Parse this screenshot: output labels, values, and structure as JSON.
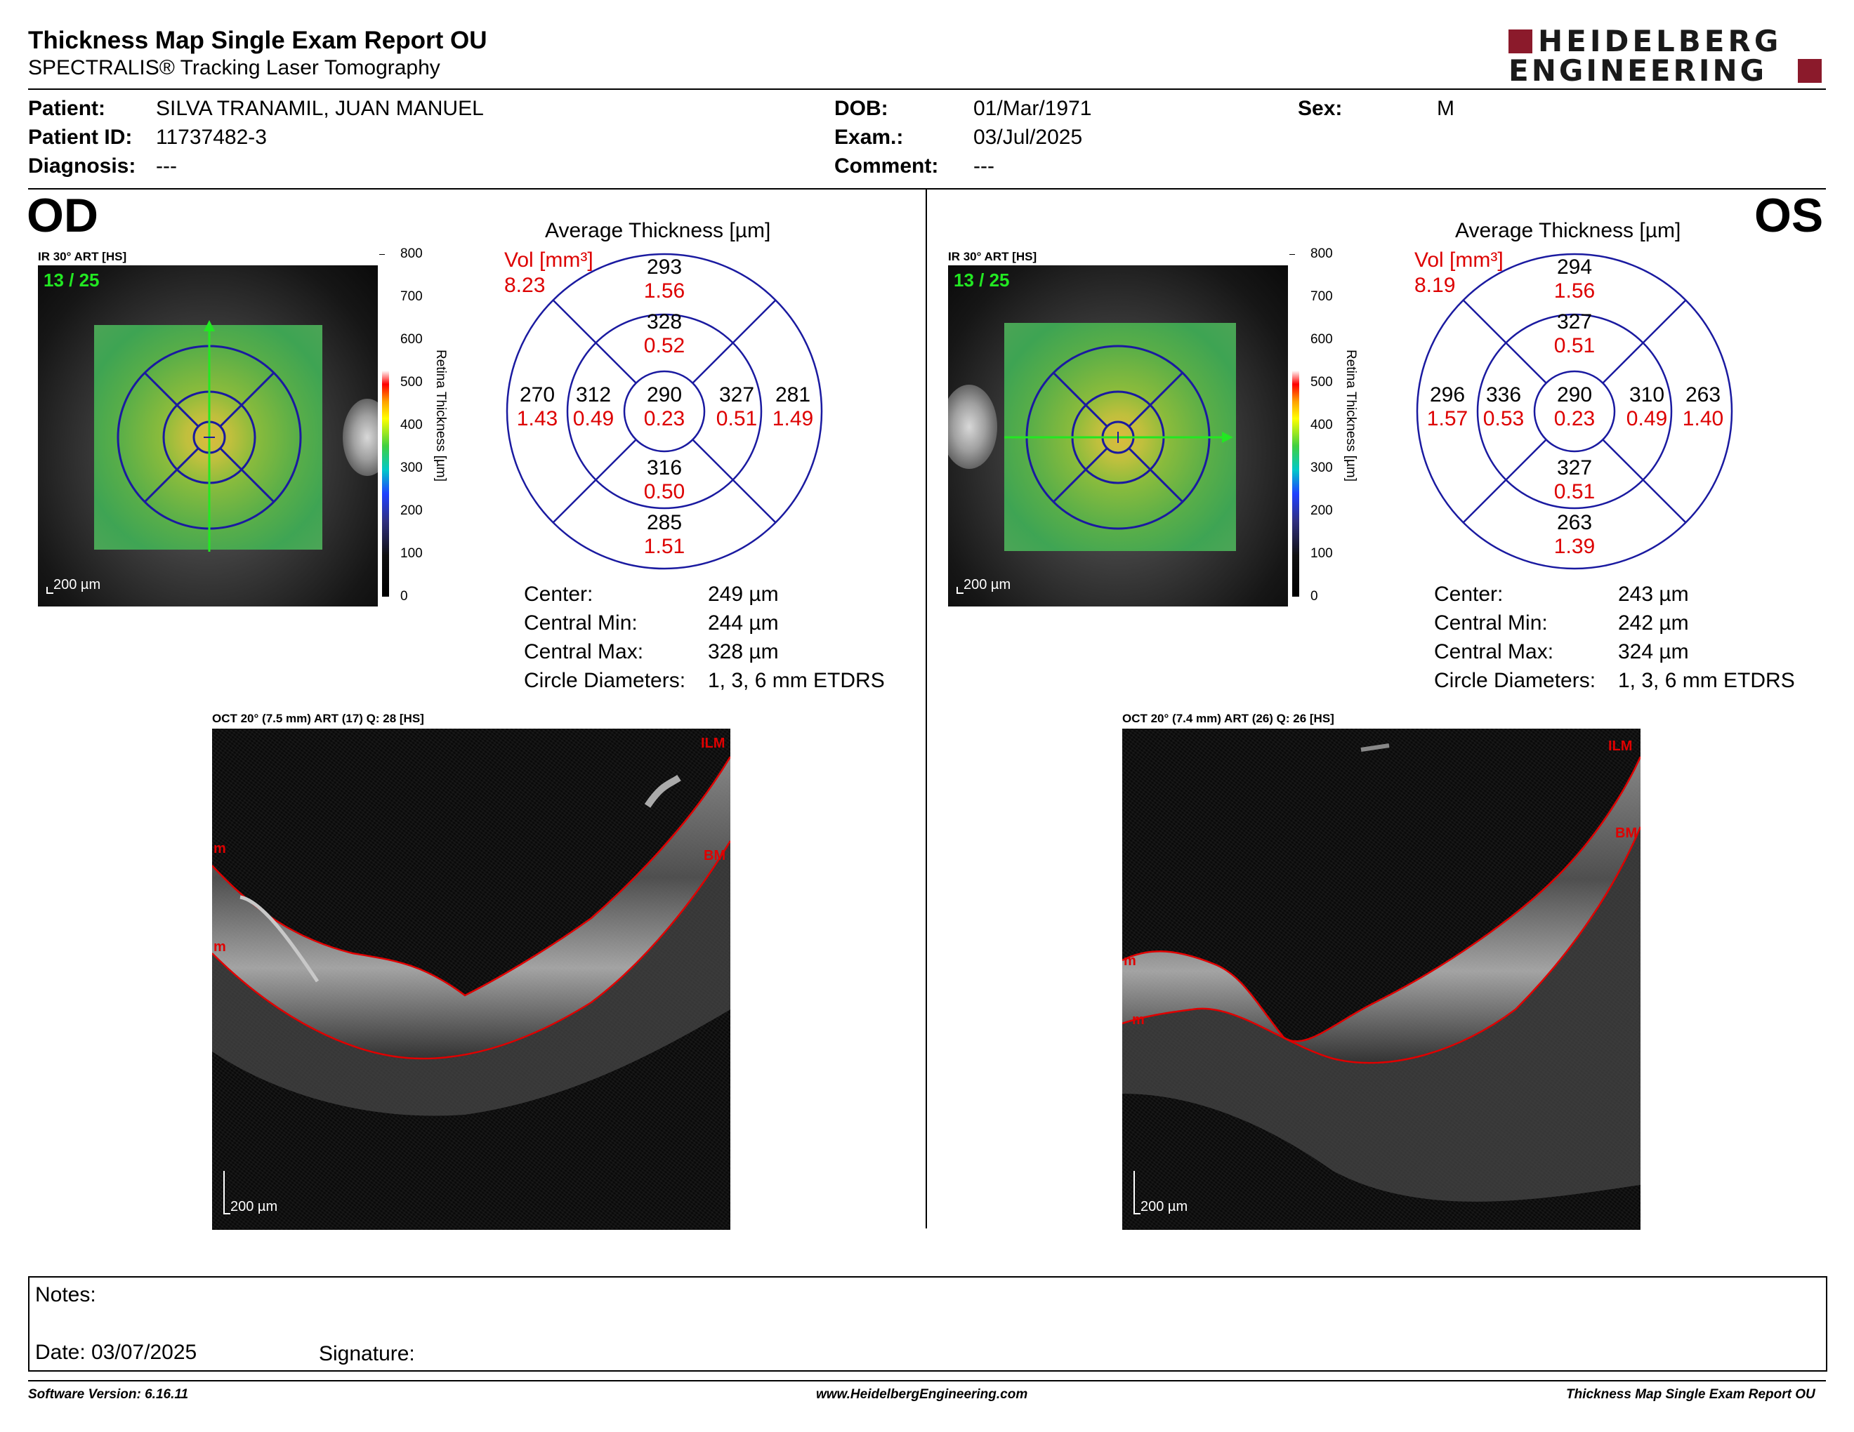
{
  "header": {
    "title": "Thickness Map Single Exam Report OU",
    "subtitle": "SPECTRALIS® Tracking Laser Tomography",
    "logo_line1": "HEIDELBERG",
    "logo_line2": "ENGINEERING",
    "logo_color": "#8b1a2b"
  },
  "patient": {
    "patient_label": "Patient:",
    "patient_value": "SILVA TRANAMIL, JUAN MANUEL",
    "id_label": "Patient ID:",
    "id_value": "11737482-3",
    "diagnosis_label": "Diagnosis:",
    "diagnosis_value": "---",
    "dob_label": "DOB:",
    "dob_value": "01/Mar/1971",
    "exam_label": "Exam.:",
    "exam_value": "03/Jul/2025",
    "comment_label": "Comment:",
    "comment_value": "---",
    "sex_label": "Sex:",
    "sex_value": "M"
  },
  "colorbar": {
    "ticks": [
      "800",
      "700",
      "600",
      "500",
      "400",
      "300",
      "200",
      "100",
      "0"
    ],
    "title": "Retina  Thickness [µm]"
  },
  "eyes": {
    "od": {
      "tag": "OD",
      "ir_caption": "IR 30° ART [HS]",
      "sequence": "13 / 25",
      "scale": "200 µm",
      "avg_title": "Average Thickness [µm]",
      "vol_label": "Vol [mm³]",
      "vol_value": "8.23",
      "etdrs": {
        "sup_outer": [
          "293",
          "1.56"
        ],
        "sup_inner": [
          "328",
          "0.52"
        ],
        "temp_outer": [
          "270",
          "1.43"
        ],
        "temp_inner": [
          "312",
          "0.49"
        ],
        "center": [
          "290",
          "0.23"
        ],
        "nasal_inner": [
          "327",
          "0.51"
        ],
        "nasal_outer": [
          "281",
          "1.49"
        ],
        "inf_inner": [
          "316",
          "0.50"
        ],
        "inf_outer": [
          "285",
          "1.51"
        ]
      },
      "stats": {
        "center_label": "Center:",
        "center_value": "249 µm",
        "min_label": "Central Min:",
        "min_value": "244 µm",
        "max_label": "Central Max:",
        "max_value": "328 µm",
        "diam_label": "Circle Diameters:",
        "diam_value": "1, 3, 6 mm ETDRS"
      },
      "oct_caption": "OCT 20° (7.5 mm) ART (17) Q: 28 [HS]",
      "oct_scale": "200 µm",
      "ilm": "ILM",
      "bm": "BM",
      "left_m1": "m",
      "left_m2": "m"
    },
    "os": {
      "tag": "OS",
      "ir_caption": "IR 30° ART [HS]",
      "sequence": "13 / 25",
      "scale": "200 µm",
      "avg_title": "Average Thickness [µm]",
      "vol_label": "Vol [mm³]",
      "vol_value": "8.19",
      "etdrs": {
        "sup_outer": [
          "294",
          "1.56"
        ],
        "sup_inner": [
          "327",
          "0.51"
        ],
        "temp_outer": [
          "263",
          "1.40"
        ],
        "temp_inner": [
          "310",
          "0.49"
        ],
        "center": [
          "290",
          "0.23"
        ],
        "nasal_inner": [
          "336",
          "0.53"
        ],
        "nasal_outer": [
          "296",
          "1.57"
        ],
        "inf_inner": [
          "327",
          "0.51"
        ],
        "inf_outer": [
          "263",
          "1.39"
        ]
      },
      "stats": {
        "center_label": "Center:",
        "center_value": "243 µm",
        "min_label": "Central Min:",
        "min_value": "242 µm",
        "max_label": "Central Max:",
        "max_value": "324 µm",
        "diam_label": "Circle Diameters:",
        "diam_value": "1, 3, 6 mm ETDRS"
      },
      "oct_caption": "OCT 20° (7.4 mm) ART (26) Q: 26 [HS]",
      "oct_scale": "200 µm",
      "ilm": "ILM",
      "bm": "BM",
      "left_m1": "m",
      "left_m2": "m"
    }
  },
  "colors": {
    "volume_red": "#dd0000",
    "etdrs_blue": "#1a1aa0",
    "seq_green": "#22e822",
    "segment_red": "#e00000"
  },
  "notes": {
    "notes_label": "Notes:",
    "date_label": "Date: 03/07/2025",
    "signature_label": "Signature:"
  },
  "footer": {
    "software": "Software Version: 6.16.11",
    "website": "www.HeidelbergEngineering.com",
    "report_name": "Thickness Map Single Exam Report OU"
  }
}
